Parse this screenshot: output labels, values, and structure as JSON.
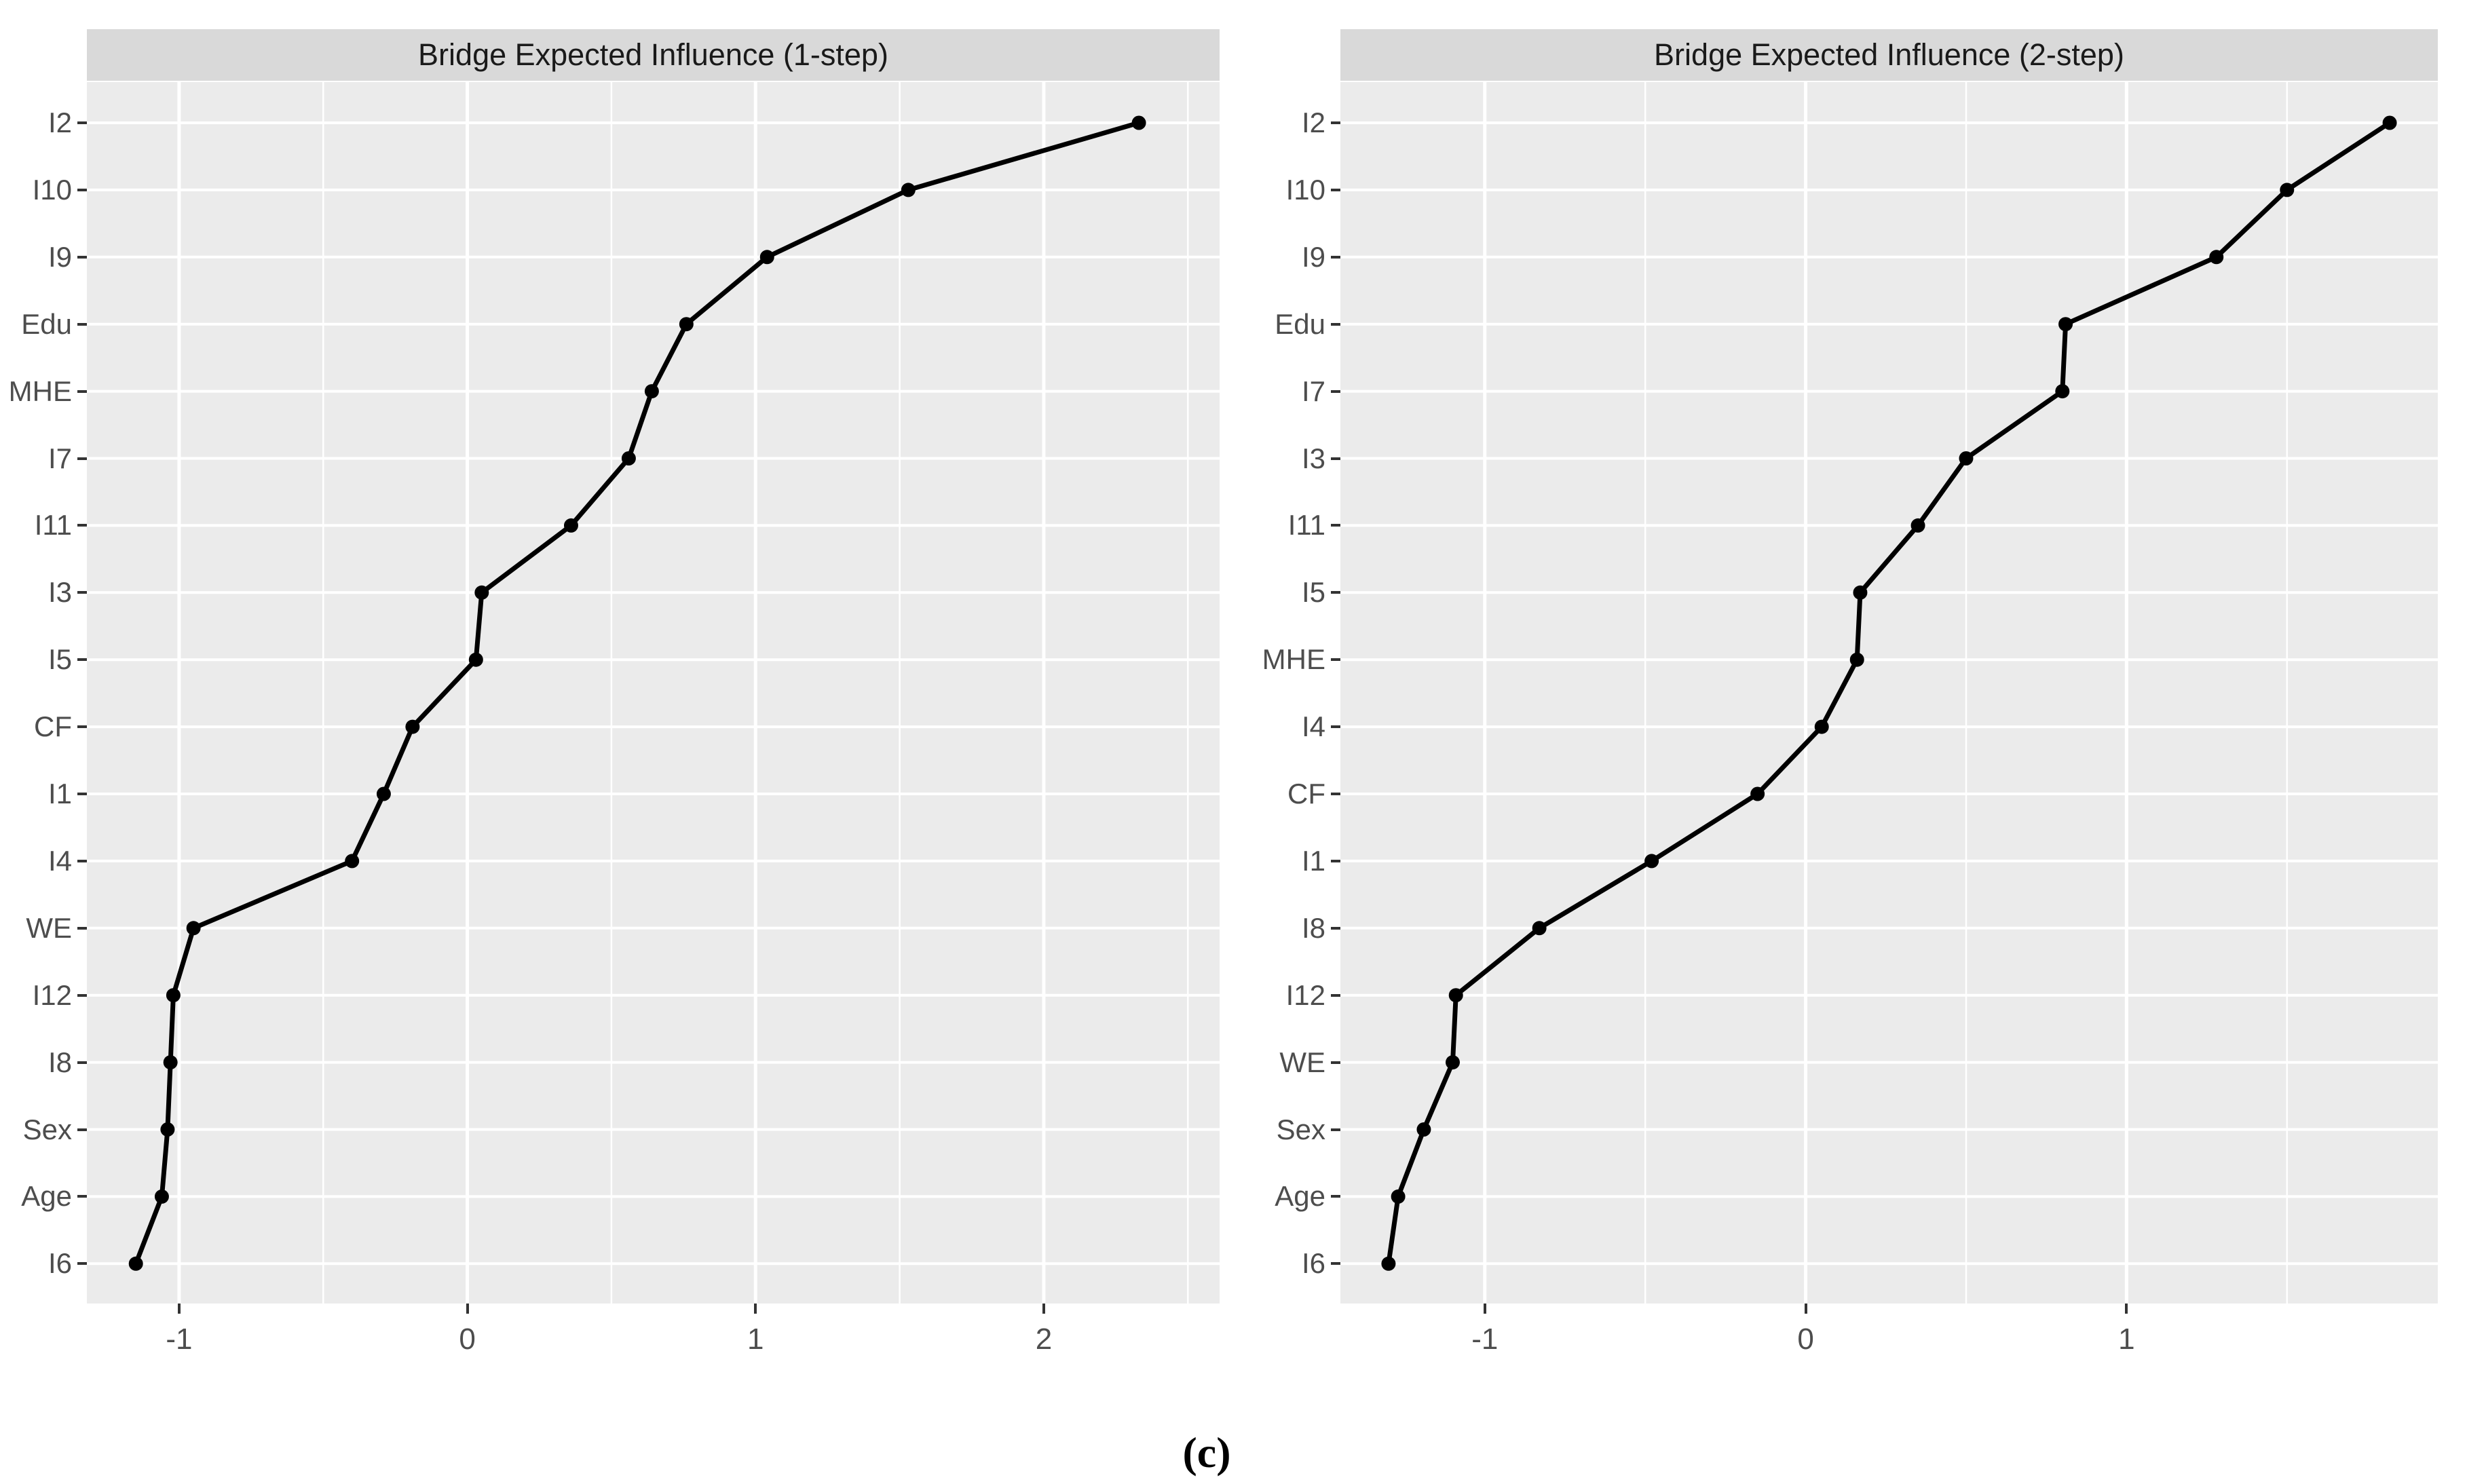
{
  "caption": "(c)",
  "colors": {
    "background": "#FFFFFF",
    "panel_bg": "#EBEBEB",
    "strip_bg": "#D9D9D9",
    "strip_text": "#1A1A1A",
    "grid": "#FFFFFF",
    "line": "#000000",
    "point": "#000000",
    "axis_text": "#4D4D4D",
    "tick_mark": "#333333"
  },
  "chart_data": [
    {
      "type": "line",
      "title": "Bridge Expected Influence (1-step)",
      "orientation": "horizontal-categories",
      "categories_top_to_bottom": [
        "I2",
        "I10",
        "I9",
        "Edu",
        "MHE",
        "I7",
        "I11",
        "I3",
        "I5",
        "CF",
        "I1",
        "I4",
        "WE",
        "I12",
        "I8",
        "Sex",
        "Age",
        "I6"
      ],
      "values_top_to_bottom": [
        2.33,
        1.53,
        1.04,
        0.76,
        0.64,
        0.56,
        0.36,
        0.05,
        0.03,
        -0.19,
        -0.29,
        -0.4,
        -0.95,
        -1.02,
        -1.03,
        -1.04,
        -1.06,
        -1.15
      ],
      "xlabel": "",
      "ylabel": "",
      "xlim": [
        -1.32,
        2.61
      ],
      "x_ticks": [
        -1,
        0,
        1,
        2
      ],
      "x_tick_labels": [
        "-1",
        "0",
        "1",
        "2"
      ],
      "x_minor_ticks": [
        -0.5,
        0.5,
        1.5,
        2.5
      ],
      "grid": true,
      "legend": false
    },
    {
      "type": "line",
      "title": "Bridge Expected Influence (2-step)",
      "orientation": "horizontal-categories",
      "categories_top_to_bottom": [
        "I2",
        "I10",
        "I9",
        "Edu",
        "I7",
        "I3",
        "I11",
        "I5",
        "MHE",
        "I4",
        "CF",
        "I1",
        "I8",
        "I12",
        "WE",
        "Sex",
        "Age",
        "I6"
      ],
      "values_top_to_bottom": [
        1.82,
        1.5,
        1.28,
        0.81,
        0.8,
        0.5,
        0.35,
        0.17,
        0.16,
        0.05,
        -0.15,
        -0.48,
        -0.83,
        -1.09,
        -1.1,
        -1.19,
        -1.27,
        -1.3
      ],
      "xlabel": "",
      "ylabel": "",
      "xlim": [
        -1.45,
        1.97
      ],
      "x_ticks": [
        -1,
        0,
        1
      ],
      "x_tick_labels": [
        "-1",
        "0",
        "1"
      ],
      "x_minor_ticks": [
        -0.5,
        0.5,
        1.5
      ],
      "grid": true,
      "legend": false
    }
  ]
}
